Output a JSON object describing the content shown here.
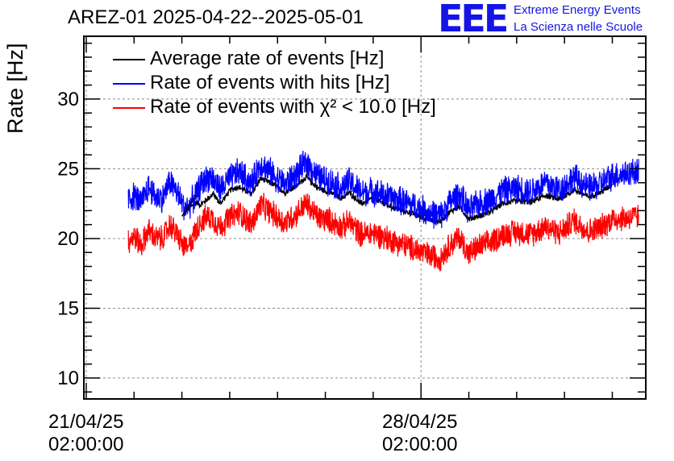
{
  "chart_data": {
    "type": "line",
    "title": "AREZ-01 2025-04-22--2025-05-01",
    "ylabel": "Rate [Hz]",
    "xlabel": "",
    "ylim": [
      8.5,
      34.5
    ],
    "yticks": [
      10,
      15,
      20,
      25,
      30
    ],
    "x_ticks": [
      {
        "label_date": "21/04/25",
        "label_time": "02:00:00",
        "day": 0
      },
      {
        "label_date": "28/04/25",
        "label_time": "02:00:00",
        "day": 7
      }
    ],
    "xlim_days": [
      -0.05,
      11.7
    ],
    "grid": true,
    "legend_position": "top-left",
    "series": [
      {
        "name": "Average rate of events [Hz]",
        "color": "#000000",
        "segments": [
          {
            "x": [
              2.08,
              2.32,
              2.38,
              2.66,
              2.8,
              3.02,
              3.18,
              3.45,
              3.65,
              3.9,
              4.15,
              4.4,
              4.6,
              4.85,
              5.1,
              5.35,
              5.5,
              5.75,
              6.0,
              6.3,
              6.6,
              6.9,
              7.15,
              7.4,
              7.6,
              7.8,
              8.0,
              8.2,
              8.45,
              8.7,
              9.0,
              9.3,
              9.6,
              9.9,
              10.2,
              10.5,
              10.75,
              11.0
            ],
            "y": [
              22.0,
              22.6,
              22.4,
              23.2,
              22.5,
              23.5,
              23.7,
              23.2,
              24.3,
              23.9,
              23.3,
              23.8,
              24.4,
              23.6,
              23.3,
              22.9,
              23.3,
              22.5,
              22.9,
              22.4,
              22.0,
              21.7,
              21.4,
              21.2,
              21.9,
              22.3,
              21.4,
              21.6,
              21.9,
              22.5,
              22.7,
              22.6,
              23.1,
              22.8,
              23.5,
              23.0,
              23.3,
              23.9
            ]
          }
        ]
      },
      {
        "name": "Rate of events with hits [Hz]",
        "color": "#0000ff",
        "segments": [
          {
            "x": [
              0.88,
              1.0,
              1.15,
              1.3,
              1.45,
              1.6,
              1.75,
              1.9,
              2.05,
              2.12
            ],
            "y": [
              22.8,
              23.1,
              22.5,
              23.7,
              23.0,
              22.9,
              24.1,
              23.3,
              22.2,
              22.3
            ]
          },
          {
            "x": [
              2.15,
              2.3,
              2.4,
              2.6,
              2.8,
              3.0,
              3.2,
              3.45,
              3.65,
              3.9,
              4.15,
              4.4,
              4.6,
              4.85,
              5.1,
              5.35,
              5.5,
              5.75,
              6.0,
              6.3,
              6.6,
              6.9,
              7.15,
              7.4,
              7.6,
              7.8,
              8.0,
              8.2,
              8.45,
              8.7,
              9.0,
              9.3,
              9.6,
              9.9,
              10.2,
              10.5,
              10.75,
              11.0,
              11.35,
              11.55
            ],
            "y": [
              22.4,
              23.1,
              23.9,
              24.5,
              23.5,
              24.3,
              24.8,
              23.9,
              25.4,
              24.6,
              23.9,
              24.6,
              25.5,
              24.4,
              24.1,
              23.6,
              24.1,
              23.3,
              23.4,
              23.0,
              22.7,
              22.3,
              21.9,
              21.6,
              22.6,
              23.2,
              22.0,
              22.5,
              22.8,
              23.4,
              23.6,
              23.4,
              24.0,
              23.5,
              24.4,
              23.6,
              23.9,
              24.5,
              24.7,
              24.9
            ]
          }
        ],
        "min": 20.2,
        "max": 27.3
      },
      {
        "name": "Rate of events with χ² < 10.0 [Hz]",
        "color": "#ff0000",
        "segments": [
          {
            "x": [
              0.88,
              1.0,
              1.15,
              1.3,
              1.45,
              1.6,
              1.75,
              1.9,
              2.05,
              2.12
            ],
            "y": [
              19.8,
              20.2,
              19.5,
              20.6,
              20.0,
              20.0,
              21.0,
              20.3,
              19.3,
              19.3
            ]
          },
          {
            "x": [
              2.15,
              2.3,
              2.4,
              2.6,
              2.8,
              3.0,
              3.2,
              3.45,
              3.65,
              3.9,
              4.15,
              4.4,
              4.6,
              4.85,
              5.1,
              5.35,
              5.5,
              5.75,
              6.0,
              6.3,
              6.6,
              6.9,
              7.15,
              7.4,
              7.6,
              7.8,
              8.0,
              8.2,
              8.45,
              8.7,
              9.0,
              9.3,
              9.6,
              9.9,
              10.2,
              10.5,
              10.75,
              11.0,
              11.35,
              11.55
            ],
            "y": [
              19.4,
              20.6,
              21.3,
              21.6,
              20.8,
              21.5,
              21.9,
              21.0,
              22.4,
              21.8,
              21.1,
              21.8,
              22.5,
              21.5,
              21.3,
              20.8,
              21.2,
              20.3,
              20.4,
              20.0,
              19.6,
              19.2,
              18.8,
              18.6,
              19.5,
              20.1,
              18.9,
              19.4,
              19.7,
              20.3,
              20.5,
              20.3,
              20.9,
              20.4,
              21.3,
              20.5,
              20.8,
              21.4,
              21.5,
              21.6
            ]
          }
        ],
        "min": 17.0,
        "max": 24.0
      }
    ]
  },
  "header": {
    "logo_text": "EEE",
    "logo_line1": "Extreme Energy Events",
    "logo_line2": "La Scienza nelle Scuole"
  },
  "colors": {
    "average": "#000000",
    "hits": "#0000ff",
    "chi2": "#ff0000",
    "logo": "#1414e6",
    "grid": "#8c8c8c"
  }
}
